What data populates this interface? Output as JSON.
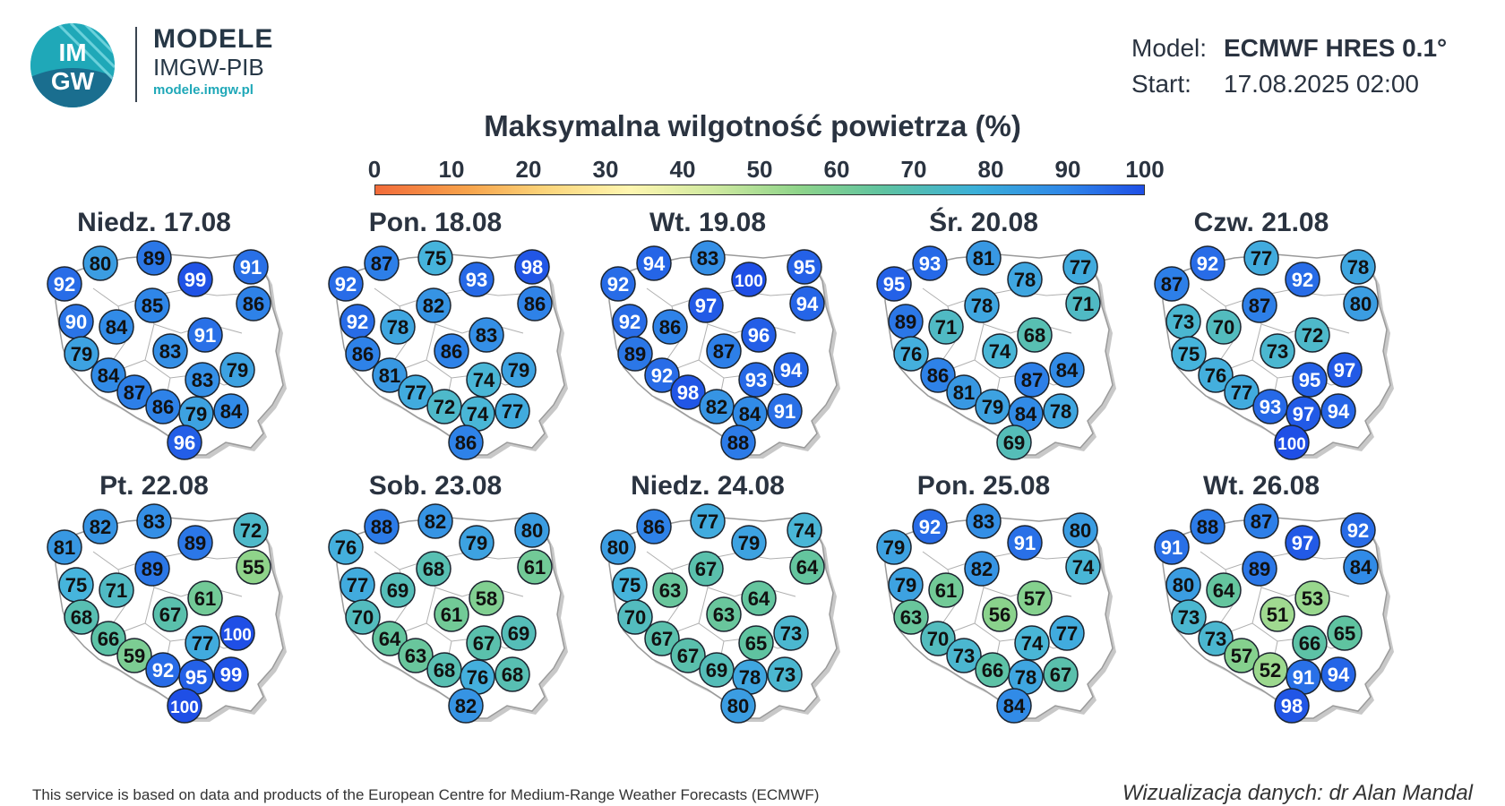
{
  "header": {
    "logo_text_top": "IM",
    "logo_text_bottom": "GW",
    "brand_title": "MODELE",
    "brand_subtitle": "IMGW-PIB",
    "brand_url": "modele.imgw.pl",
    "model_label": "Model:",
    "model_value": "ECMWF HRES 0.1°",
    "start_label": "Start:",
    "start_value": "17.08.2025 02:00"
  },
  "title": "Maksymalna wilgotność powietrza (%)",
  "scale": {
    "ticks": [
      "0",
      "10",
      "20",
      "30",
      "40",
      "50",
      "60",
      "70",
      "80",
      "90",
      "100"
    ],
    "colors": [
      "#f26b3a",
      "#f7a34b",
      "#fbd47a",
      "#fff6b0",
      "#cfe9a0",
      "#8fd48a",
      "#5fc3a0",
      "#3bb0d8",
      "#2f86e8",
      "#1f4fe6"
    ]
  },
  "map_data": {
    "maps": [
      {
        "day": "Niedz. 17.08",
        "values": [
          80,
          89,
          92,
          99,
          91,
          85,
          86,
          90,
          84,
          91,
          79,
          83,
          79,
          84,
          83,
          87,
          86,
          79,
          84,
          96
        ]
      },
      {
        "day": "Pon. 18.08",
        "values": [
          87,
          75,
          92,
          93,
          98,
          82,
          86,
          92,
          78,
          83,
          86,
          86,
          79,
          81,
          74,
          77,
          72,
          74,
          77,
          86
        ]
      },
      {
        "day": "Wt. 19.08",
        "values": [
          94,
          83,
          92,
          100,
          95,
          97,
          94,
          92,
          86,
          96,
          89,
          87,
          94,
          92,
          93,
          98,
          82,
          84,
          91,
          88
        ]
      },
      {
        "day": "Śr. 20.08",
        "values": [
          93,
          81,
          95,
          78,
          77,
          78,
          71,
          89,
          71,
          68,
          76,
          74,
          84,
          86,
          87,
          81,
          79,
          84,
          78,
          69
        ]
      },
      {
        "day": "Czw. 21.08",
        "values": [
          92,
          77,
          87,
          92,
          78,
          87,
          80,
          73,
          70,
          72,
          75,
          73,
          97,
          76,
          95,
          77,
          93,
          97,
          94,
          100
        ]
      },
      {
        "day": "Pt. 22.08",
        "values": [
          82,
          83,
          81,
          89,
          72,
          89,
          55,
          75,
          71,
          61,
          68,
          67,
          100,
          66,
          77,
          59,
          92,
          95,
          99,
          100
        ]
      },
      {
        "day": "Sob. 23.08",
        "values": [
          88,
          82,
          76,
          79,
          80,
          68,
          61,
          77,
          69,
          58,
          70,
          61,
          69,
          64,
          67,
          63,
          68,
          76,
          68,
          82
        ]
      },
      {
        "day": "Niedz. 24.08",
        "values": [
          86,
          77,
          80,
          79,
          74,
          67,
          64,
          75,
          63,
          64,
          70,
          63,
          73,
          67,
          65,
          67,
          69,
          78,
          73,
          80
        ]
      },
      {
        "day": "Pon. 25.08",
        "values": [
          92,
          83,
          79,
          91,
          80,
          82,
          74,
          79,
          61,
          57,
          63,
          56,
          77,
          70,
          74,
          73,
          66,
          78,
          67,
          84
        ]
      },
      {
        "day": "Wt. 26.08",
        "values": [
          88,
          87,
          91,
          97,
          92,
          89,
          84,
          80,
          64,
          53,
          73,
          51,
          65,
          73,
          66,
          57,
          52,
          91,
          94,
          98
        ]
      }
    ]
  },
  "footer": {
    "credit_left": "This service is based on data and products of the European Centre for Medium-Range Weather Forecasts (ECMWF)",
    "credit_right": "Wizualizacja danych: dr Alan Mandal"
  }
}
